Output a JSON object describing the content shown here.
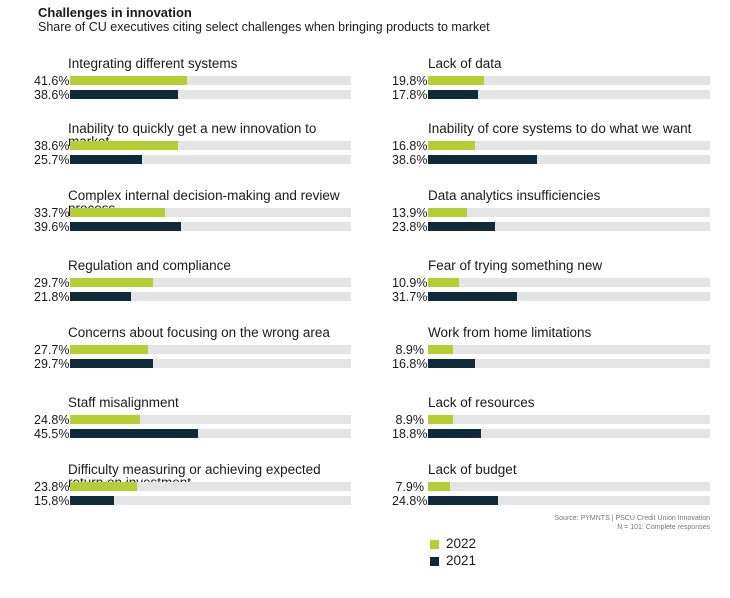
{
  "chart_data": {
    "type": "bar",
    "orientation": "horizontal",
    "title": "Challenges in innovation",
    "subtitle": "Share of CU executives citing select challenges when bringing products to market",
    "unit": "%",
    "xlim": [
      0,
      100
    ],
    "series": [
      {
        "name": "2022",
        "color": "#b5cf32"
      },
      {
        "name": "2021",
        "color": "#0f2a39"
      }
    ],
    "categories": [
      {
        "label": "Integrating different systems",
        "values": [
          41.6,
          38.6
        ],
        "display": [
          "41.6%",
          "38.6%"
        ]
      },
      {
        "label": "Inability to quickly get a new innovation to market",
        "values": [
          38.6,
          25.7
        ],
        "display": [
          "38.6%",
          "25.7%"
        ]
      },
      {
        "label": "Complex internal decision-making and review process",
        "values": [
          33.7,
          39.6
        ],
        "display": [
          "33.7%",
          "39.6%"
        ]
      },
      {
        "label": "Regulation and compliance",
        "values": [
          29.7,
          21.8
        ],
        "display": [
          "29.7%",
          "21.8%"
        ]
      },
      {
        "label": "Concerns about focusing on the wrong area",
        "values": [
          27.7,
          29.7
        ],
        "display": [
          "27.7%",
          "29.7%"
        ]
      },
      {
        "label": "Staff misalignment",
        "values": [
          24.8,
          45.5
        ],
        "display": [
          "24.8%",
          "45.5%"
        ]
      },
      {
        "label": "Difficulty measuring or achieving expected return on investment",
        "values": [
          23.8,
          15.8
        ],
        "display": [
          "23.8%",
          "15.8%"
        ]
      },
      {
        "label": "Lack of data",
        "values": [
          19.8,
          17.8
        ],
        "display": [
          "19.8%",
          "17.8%"
        ]
      },
      {
        "label": "Inability of core systems to do what we want",
        "values": [
          16.8,
          38.6
        ],
        "display": [
          "16.8%",
          "38.6%"
        ]
      },
      {
        "label": "Data analytics insufficiencies",
        "values": [
          13.9,
          23.8
        ],
        "display": [
          "13.9%",
          "23.8%"
        ]
      },
      {
        "label": "Fear of trying something new",
        "values": [
          10.9,
          31.7
        ],
        "display": [
          "10.9%",
          "31.7%"
        ]
      },
      {
        "label": "Work from home limitations",
        "values": [
          8.9,
          16.8
        ],
        "display": [
          "8.9%",
          "16.8%"
        ]
      },
      {
        "label": "Lack of resources",
        "values": [
          8.9,
          18.8
        ],
        "display": [
          "8.9%",
          "18.8%"
        ]
      },
      {
        "label": "Lack of budget",
        "values": [
          7.9,
          24.8
        ],
        "display": [
          "7.9%",
          "24.8%"
        ]
      }
    ],
    "legend": [
      "2022",
      "2021"
    ],
    "legend_position": "bottom-right"
  },
  "source": {
    "line1": "Source: PYMNTS | PSCU Credit Union Innovation",
    "line2": "N = 101: Complete responses"
  }
}
